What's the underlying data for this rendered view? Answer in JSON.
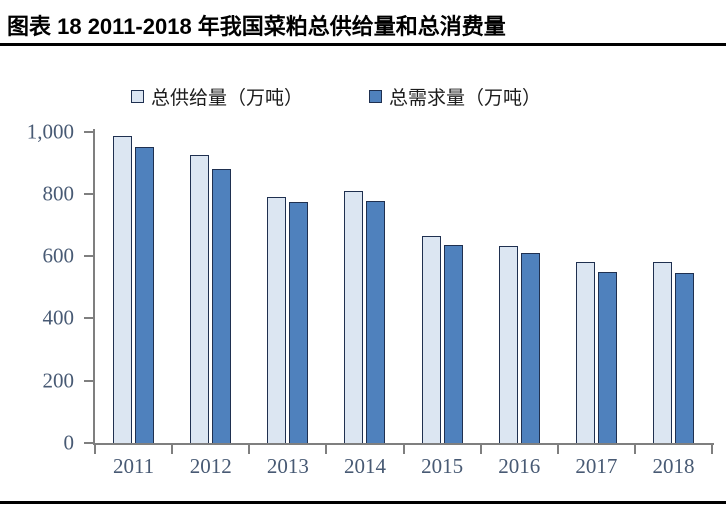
{
  "header": {
    "title": "图表 18 2011-2018 年我国菜粕总供给量和总消费量"
  },
  "chart_data": {
    "type": "bar",
    "title": "图表 18 2011-2018 年我国菜粕总供给量和总消费量",
    "categories": [
      "2011",
      "2012",
      "2013",
      "2014",
      "2015",
      "2016",
      "2017",
      "2018"
    ],
    "series": [
      {
        "name": "总供给量（万吨）",
        "key": "supply",
        "values": [
          985,
          925,
          790,
          810,
          665,
          633,
          580,
          582
        ]
      },
      {
        "name": "总需求量（万吨）",
        "key": "demand",
        "values": [
          950,
          880,
          775,
          778,
          635,
          610,
          548,
          546
        ]
      }
    ],
    "xlabel": "",
    "ylabel": "",
    "ylim": [
      0,
      1000
    ],
    "yticks": [
      0,
      200,
      400,
      600,
      800,
      1000
    ],
    "ytick_labels": [
      "0",
      "200",
      "400",
      "600",
      "800",
      "1,000"
    ],
    "grid": false,
    "legend_position": "top",
    "colors": {
      "supply_fill": "#dce6f2",
      "demand_fill": "#4f81bd",
      "bar_border": "#1f3050",
      "axis": "#7f7f7f",
      "tick_label": "#485a74"
    }
  }
}
